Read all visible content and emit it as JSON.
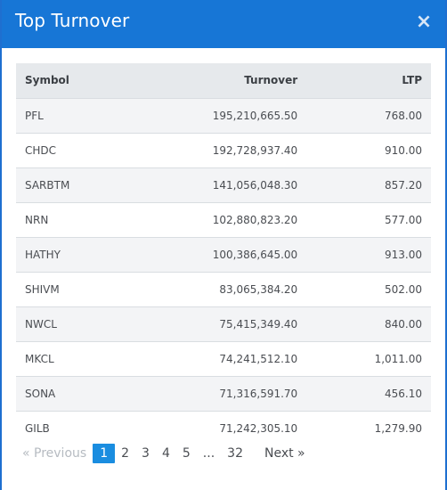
{
  "modal": {
    "title": "Top Turnover",
    "close_glyph": "×"
  },
  "table": {
    "headers": {
      "symbol": "Symbol",
      "turnover": "Turnover",
      "ltp": "LTP"
    },
    "rows": [
      {
        "symbol": "PFL",
        "turnover": "195,210,665.50",
        "ltp": "768.00"
      },
      {
        "symbol": "CHDC",
        "turnover": "192,728,937.40",
        "ltp": "910.00"
      },
      {
        "symbol": "SARBTM",
        "turnover": "141,056,048.30",
        "ltp": "857.20"
      },
      {
        "symbol": "NRN",
        "turnover": "102,880,823.20",
        "ltp": "577.00"
      },
      {
        "symbol": "HATHY",
        "turnover": "100,386,645.00",
        "ltp": "913.00"
      },
      {
        "symbol": "SHIVM",
        "turnover": "83,065,384.20",
        "ltp": "502.00"
      },
      {
        "symbol": "NWCL",
        "turnover": "75,415,349.40",
        "ltp": "840.00"
      },
      {
        "symbol": "MKCL",
        "turnover": "74,241,512.10",
        "ltp": "1,011.00"
      },
      {
        "symbol": "SONA",
        "turnover": "71,316,591.70",
        "ltp": "456.10"
      },
      {
        "symbol": "GILB",
        "turnover": "71,242,305.10",
        "ltp": "1,279.90"
      }
    ]
  },
  "pagination": {
    "previous_label": "«  Previous",
    "next_label": "Next  »",
    "pages": [
      "1",
      "2",
      "3",
      "4",
      "5"
    ],
    "ellipsis": "...",
    "last_page": "32",
    "current_page": "1"
  },
  "colors": {
    "header_bg": "#1776d6",
    "active_page": "#1a8de0",
    "table_header_bg": "#e6e9ec"
  }
}
